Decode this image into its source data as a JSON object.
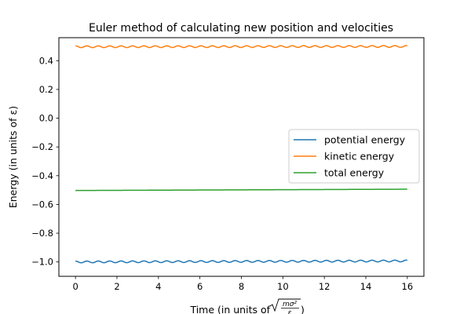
{
  "chart_data": {
    "type": "line",
    "title": "Euler method of calculating new position and velocities",
    "xlabel": {
      "prefix": "Time (in units of ",
      "sqrt_numerator": "mσ²",
      "sqrt_denominator": "ε",
      "suffix": ")"
    },
    "ylabel": "Energy (in units of ε)",
    "xlim": [
      -0.8,
      16.8
    ],
    "ylim": [
      -1.1,
      0.56
    ],
    "xticks": [
      0,
      2,
      4,
      6,
      8,
      10,
      12,
      14,
      16
    ],
    "xtick_labels": [
      "0",
      "2",
      "4",
      "6",
      "8",
      "10",
      "12",
      "14",
      "16"
    ],
    "yticks": [
      -1.0,
      -0.8,
      -0.6,
      -0.4,
      -0.2,
      0.0,
      0.2,
      0.4
    ],
    "ytick_labels": [
      "−1.0",
      "−0.8",
      "−0.6",
      "−0.4",
      "−0.2",
      "0.0",
      "0.2",
      "0.4"
    ],
    "grid": false,
    "legend_position": "center-right",
    "x_range": [
      0,
      16
    ],
    "series": [
      {
        "name": "potential energy",
        "color": "#1f77b4",
        "model": "oscillation",
        "start": -1.0,
        "end": -0.993,
        "amplitude": 0.006,
        "period": 0.55
      },
      {
        "name": "kinetic energy",
        "color": "#ff7f0e",
        "model": "oscillation",
        "start": 0.497,
        "end": 0.499,
        "amplitude": 0.006,
        "period": 0.55
      },
      {
        "name": "total energy",
        "color": "#2ca02c",
        "model": "linear",
        "start": -0.503,
        "end": -0.494,
        "amplitude": 0,
        "period": 1
      }
    ]
  }
}
